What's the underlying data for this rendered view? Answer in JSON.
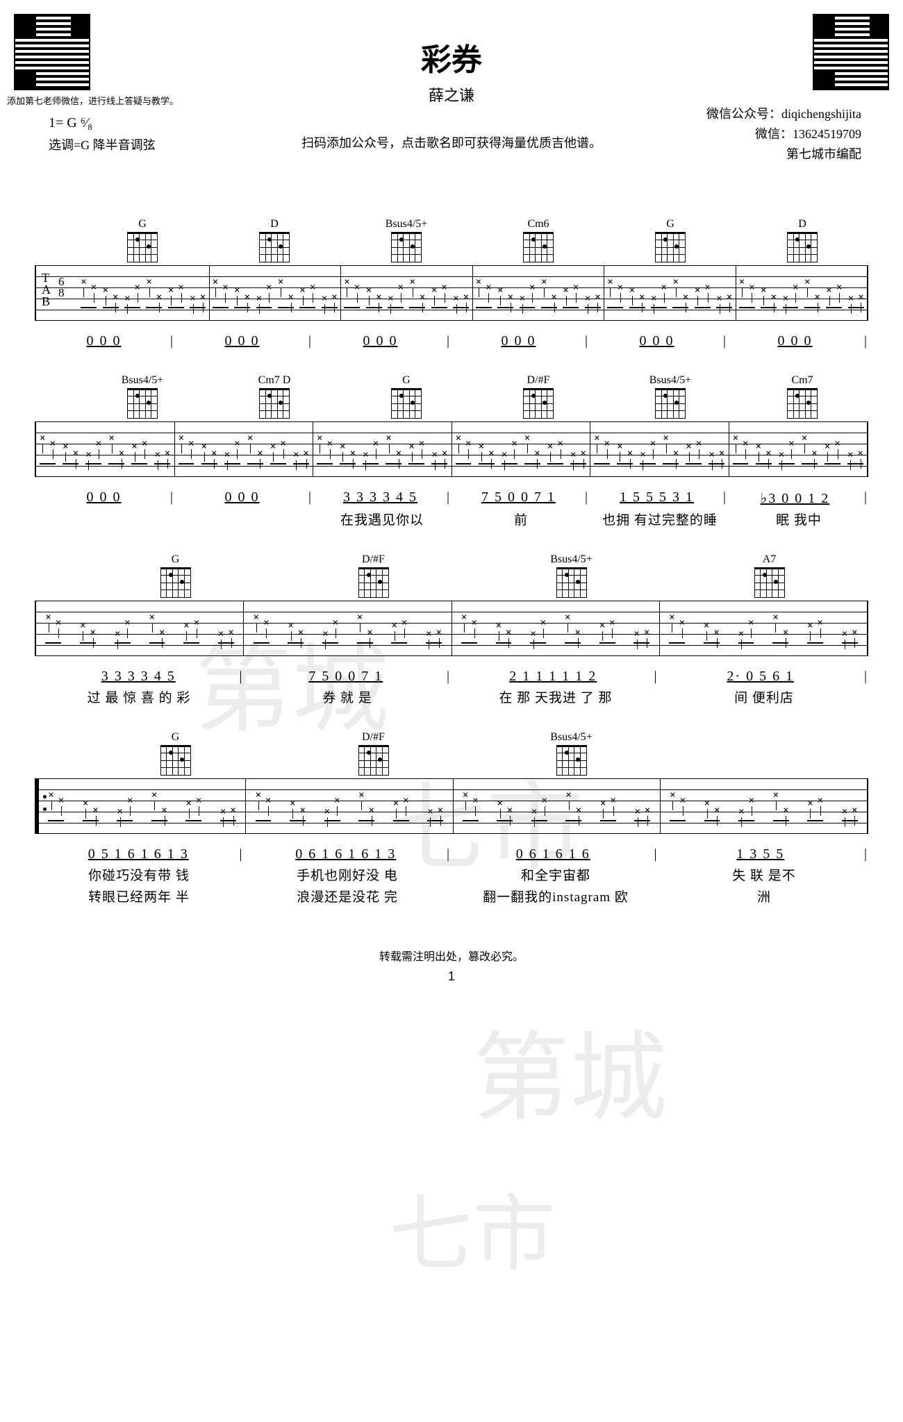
{
  "title": "彩券",
  "artist": "薛之谦",
  "qr_caption": "添加第七老师微信，进行线上答疑与教学。",
  "meta_left_line1": "1= G ⁶⁄₈",
  "meta_left_line2": "选调=G 降半音调弦",
  "meta_right_line1": "微信公众号：diqichengshijita",
  "meta_right_line2": "微信：13624519709",
  "meta_right_line3": "第七城市编配",
  "subhead": "扫码添加公众号，点击歌名即可获得海量优质吉他谱。",
  "footer_note": "转载需注明出处，篡改必究。",
  "page_number": "1",
  "watermark": "第城七市",
  "systems": [
    {
      "chords": [
        "G",
        "D",
        "Bsus4/5+",
        "Cm6",
        "G",
        "D"
      ],
      "tab_start": true,
      "numbers": [
        "0 0 0",
        "0 0 0",
        "0 0 0",
        "0 0 0",
        "0 0 0",
        "0 0 0"
      ],
      "lyrics1": [
        "",
        "",
        "",
        "",
        "",
        ""
      ],
      "lyrics2": []
    },
    {
      "chords": [
        "Bsus4/5+",
        "Cm7  D",
        "G",
        "D/#F",
        "Bsus4/5+",
        "Cm7"
      ],
      "numbers": [
        "0 0 0",
        "0 0 0",
        "3 3 3 3 4 5",
        "7 5 0  0 7 1",
        "1 5 5 5 3 1",
        "♭3 0  0 1 2"
      ],
      "lyrics1": [
        "",
        "",
        "在我遇见你以",
        "前",
        "也拥 有过完整的睡",
        "眠    我中"
      ],
      "lyrics2": []
    },
    {
      "chords": [
        "G",
        "D/#F",
        "Bsus4/5+",
        "A7"
      ],
      "numbers": [
        "3 3 3  3 4 5",
        "7 5 0   0 7 1",
        "2 1 1 1  1 1 2",
        "2·      0 5 6 1"
      ],
      "lyrics1": [
        "过 最 惊  喜 的 彩",
        "券        就 是",
        "在 那 天我进 了 那",
        "间        便利店"
      ],
      "lyrics2": []
    },
    {
      "chords": [
        "G",
        "D/#F",
        "Bsus4/5+",
        ""
      ],
      "repeat_start": true,
      "numbers": [
        "0 5 1 6 1 6 1  3",
        "0 6 1 6 1 6 1  3",
        "0 6 1 6 1 6",
        "1    3 5 5"
      ],
      "lyrics1": [
        "你碰巧没有带 钱",
        "手机也刚好没 电",
        "和全宇宙都",
        "失   联 是不"
      ],
      "lyrics2": [
        "转眼已经两年 半",
        "浪漫还是没花 完",
        "翻一翻我的instagram 欧",
        "洲"
      ]
    }
  ]
}
